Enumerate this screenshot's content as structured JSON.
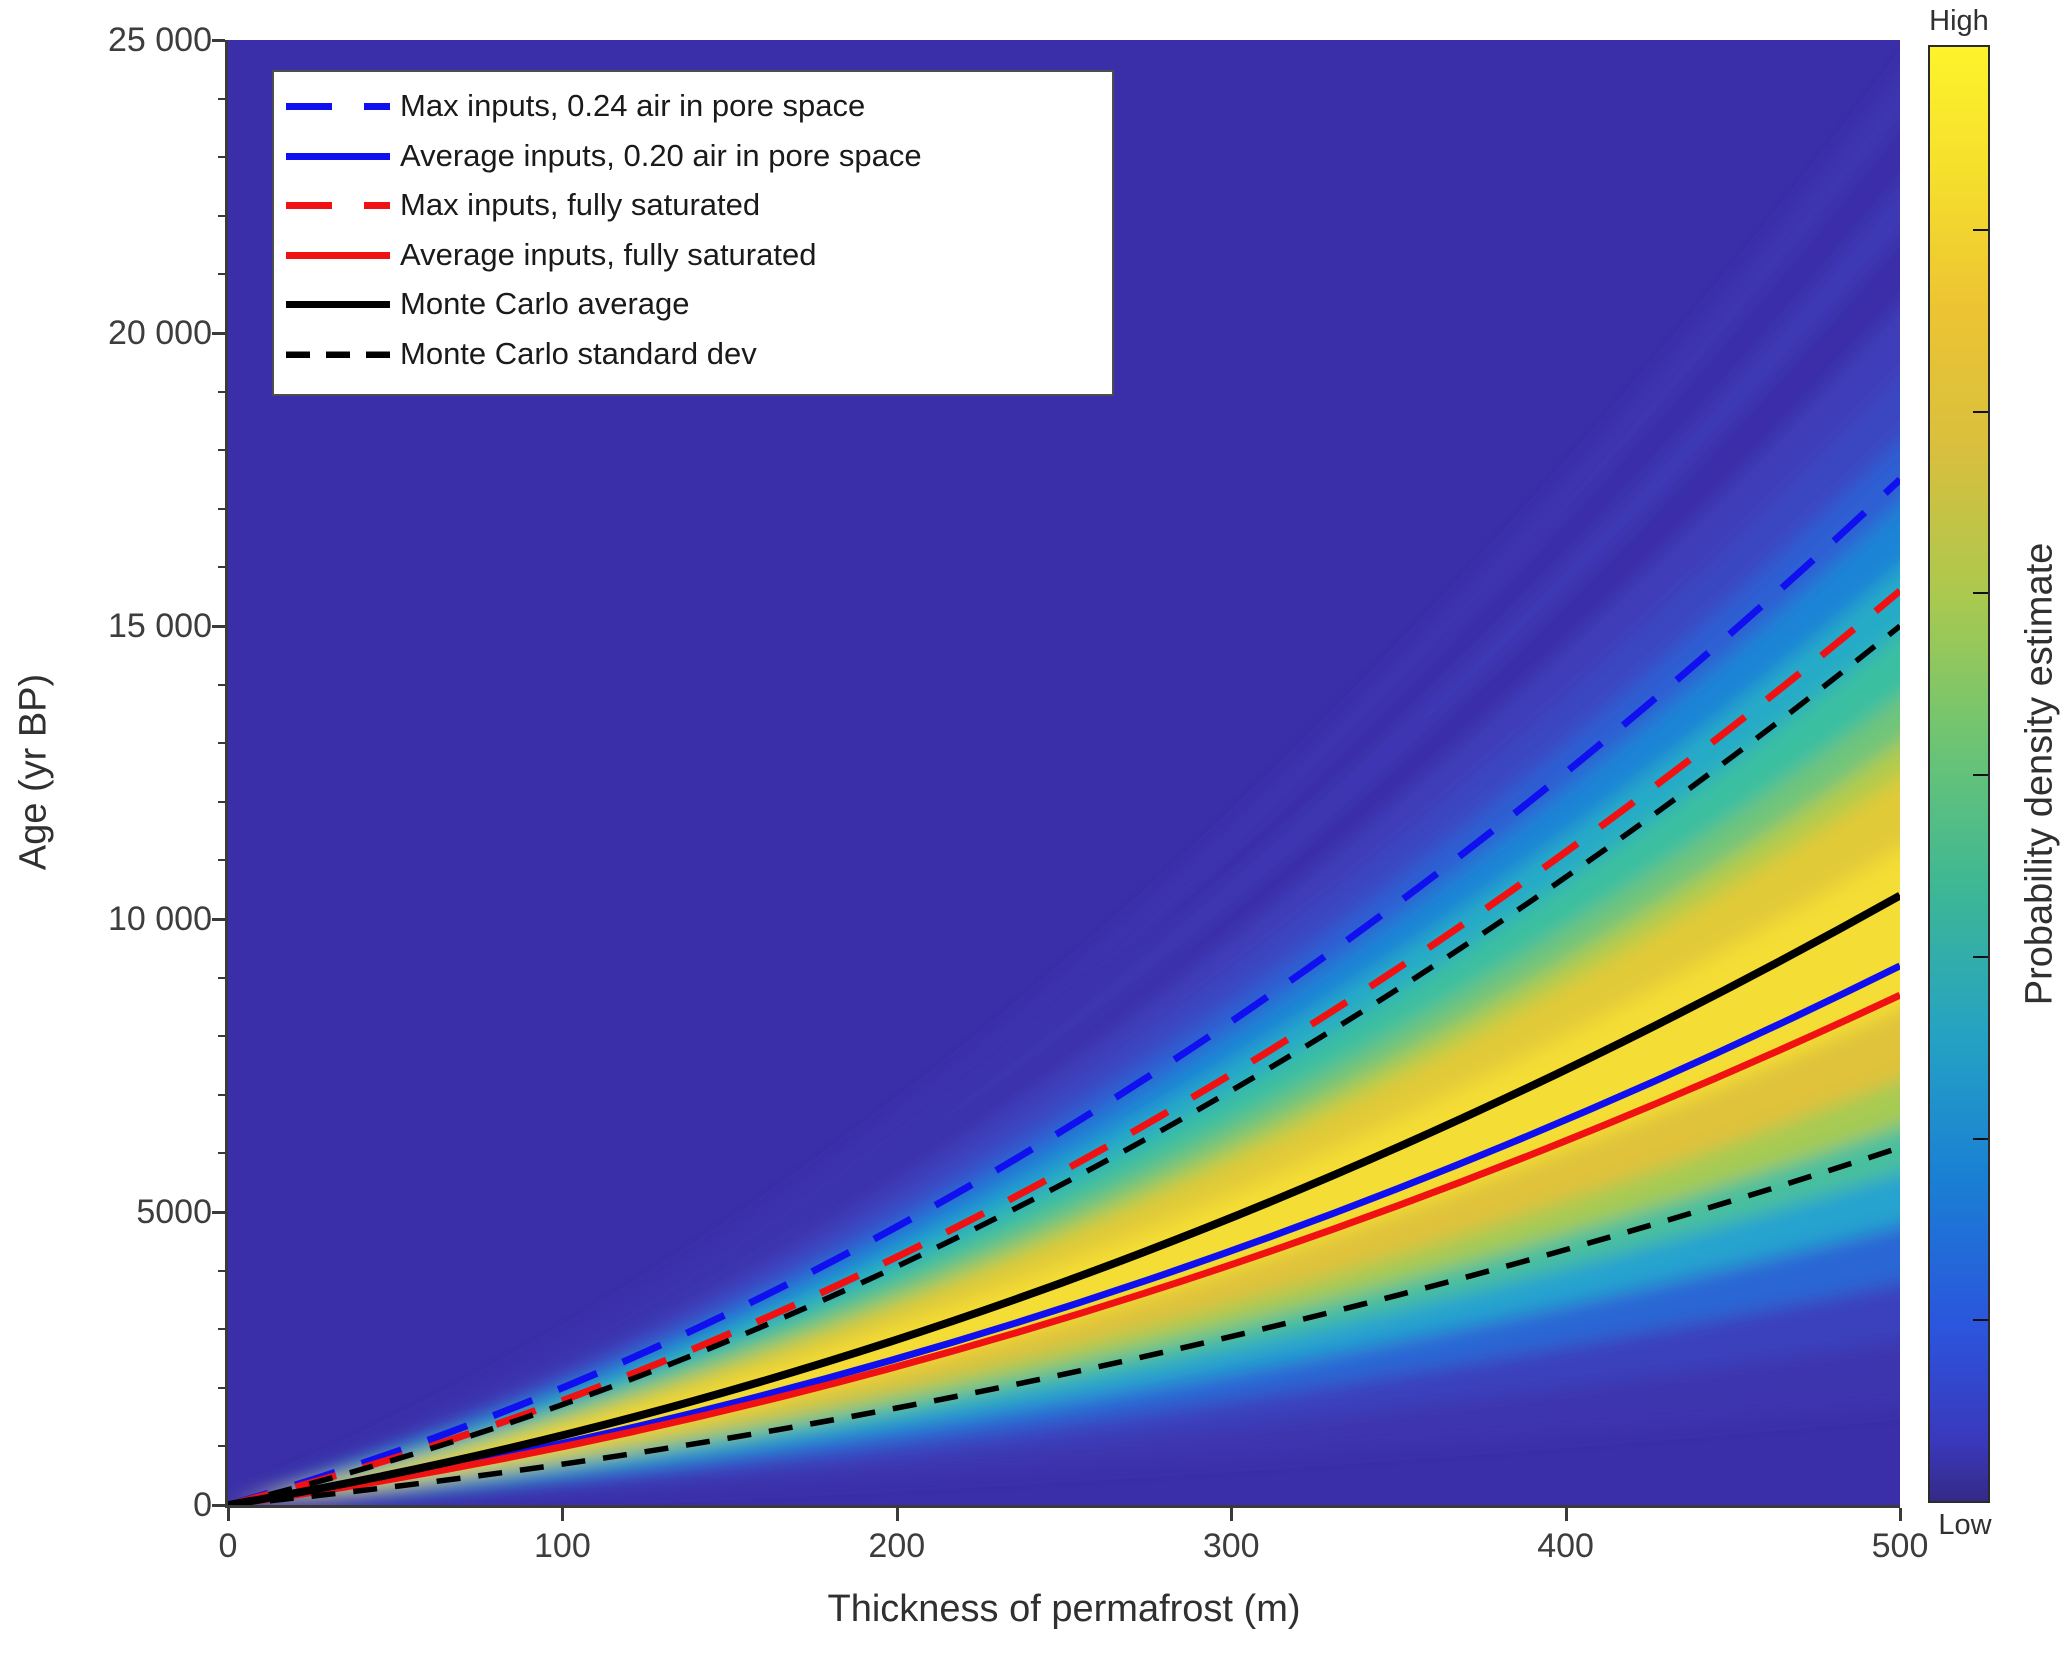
{
  "axes": {
    "x": {
      "label": "Thickness of permafrost (m)",
      "range": [
        0,
        500
      ],
      "ticks": [
        {
          "v": 0,
          "label": "0"
        },
        {
          "v": 100,
          "label": "100"
        },
        {
          "v": 200,
          "label": "200"
        },
        {
          "v": 300,
          "label": "300"
        },
        {
          "v": 400,
          "label": "400"
        },
        {
          "v": 500,
          "label": "500"
        }
      ]
    },
    "y": {
      "label": "Age (yr BP)",
      "range": [
        0,
        25000
      ],
      "minor_step": 1000,
      "ticks": [
        {
          "v": 0,
          "label": "0"
        },
        {
          "v": 5000,
          "label": "5000"
        },
        {
          "v": 10000,
          "label": "10 000"
        },
        {
          "v": 15000,
          "label": "15 000"
        },
        {
          "v": 20000,
          "label": "20 000"
        },
        {
          "v": 25000,
          "label": "25 000"
        }
      ]
    }
  },
  "legend": {
    "items": [
      {
        "label": "Max inputs, 0.24 air in pore space",
        "color": "#0f0ff0",
        "style": "dashed"
      },
      {
        "label": "Average inputs, 0.20 air in pore space",
        "color": "#0f0ff0",
        "style": "solid"
      },
      {
        "label": "Max inputs, fully saturated",
        "color": "#f01212",
        "style": "dashed"
      },
      {
        "label": "Average inputs, fully saturated",
        "color": "#f01212",
        "style": "solid"
      },
      {
        "label": "Monte Carlo average",
        "color": "#000000",
        "style": "solid"
      },
      {
        "label": "Monte Carlo standard dev",
        "color": "#000000",
        "style": "short-dashed"
      }
    ]
  },
  "colorbar": {
    "high": "High",
    "low": "Low",
    "label": "Probability density estimate",
    "stops_top_to_bottom": [
      "#fdf32c",
      "#f6e12c",
      "#ecc433",
      "#d8bf3e",
      "#a9c94f",
      "#6cc474",
      "#3db795",
      "#25a2c3",
      "#1a7fd4",
      "#2b55dd",
      "#3a38bb",
      "#352a87"
    ],
    "stop_positions_pct": [
      0,
      8,
      18,
      28,
      38,
      48,
      58,
      68,
      78,
      88,
      96,
      100
    ]
  },
  "chart_data": {
    "type": "heatmap",
    "title": "",
    "xlabel": "Thickness of permafrost (m)",
    "ylabel": "Age (yr BP)",
    "xlim": [
      0,
      500
    ],
    "ylim": [
      0,
      25000
    ],
    "grid": false,
    "legend_position": "top-left",
    "curve_exponent": 1.45,
    "x": [
      0,
      100,
      200,
      300,
      400,
      500
    ],
    "series": [
      {
        "name": "Max inputs, 0.24 air in pore space",
        "color": "#0f0ff0",
        "style": "dashed",
        "values": [
          0,
          1700,
          4650,
          8350,
          12650,
          17500
        ]
      },
      {
        "name": "Average inputs, 0.20 air in pore space",
        "color": "#0f0ff0",
        "style": "solid",
        "values": [
          0,
          900,
          2450,
          4400,
          6650,
          9200
        ]
      },
      {
        "name": "Max inputs, fully saturated",
        "color": "#f01212",
        "style": "dashed",
        "values": [
          0,
          1500,
          4150,
          7450,
          11300,
          15600
        ]
      },
      {
        "name": "Average inputs, fully saturated",
        "color": "#f01212",
        "style": "solid",
        "values": [
          0,
          850,
          2300,
          4150,
          6300,
          8700
        ]
      },
      {
        "name": "Monte Carlo average",
        "color": "#000000",
        "style": "solid",
        "values": [
          0,
          1000,
          2750,
          4950,
          7550,
          10400
        ]
      },
      {
        "name": "Monte Carlo standard dev (upper)",
        "color": "#000000",
        "style": "short-dashed",
        "values": [
          0,
          1450,
          3950,
          7150,
          10850,
          15000
        ]
      },
      {
        "name": "Monte Carlo standard dev (lower)",
        "color": "#000000",
        "style": "short-dashed",
        "values": [
          0,
          600,
          1600,
          2900,
          4400,
          6100
        ]
      }
    ],
    "heatmap": {
      "description": "Probability density fan spreading from origin; yellow ridge follows Monte Carlo average; parula colormap; values are band boundaries (age at 500 m) from top to bottom",
      "background": "#3a2fa8",
      "band_boundaries_at_x500": [
        24600,
        23700,
        22700,
        21800,
        20600,
        19400,
        18300,
        17200,
        16100,
        15000,
        13900,
        13100,
        12500,
        11300,
        8500,
        7300,
        6500,
        5700,
        4800,
        3800,
        2800,
        1700
      ],
      "band_colors": [
        "#3d36b1",
        "#3a2fa8",
        "#3e37b5",
        "#3a2fa8",
        "#3f3cba",
        "#3b47c1",
        "#2e5fd3",
        "#1f84d5",
        "#26abc7",
        "#3bbfa1",
        "#70c57a",
        "#b2cc4b",
        "#e1ca39",
        "#f4dd35",
        "#e0c23b",
        "#a6cb53",
        "#4abf9e",
        "#28a3cf",
        "#2c66d4",
        "#3a41bc",
        "#3c35ae"
      ]
    },
    "colorbar_labels": {
      "high": "High",
      "low": "Low",
      "title": "Probability density estimate"
    }
  }
}
